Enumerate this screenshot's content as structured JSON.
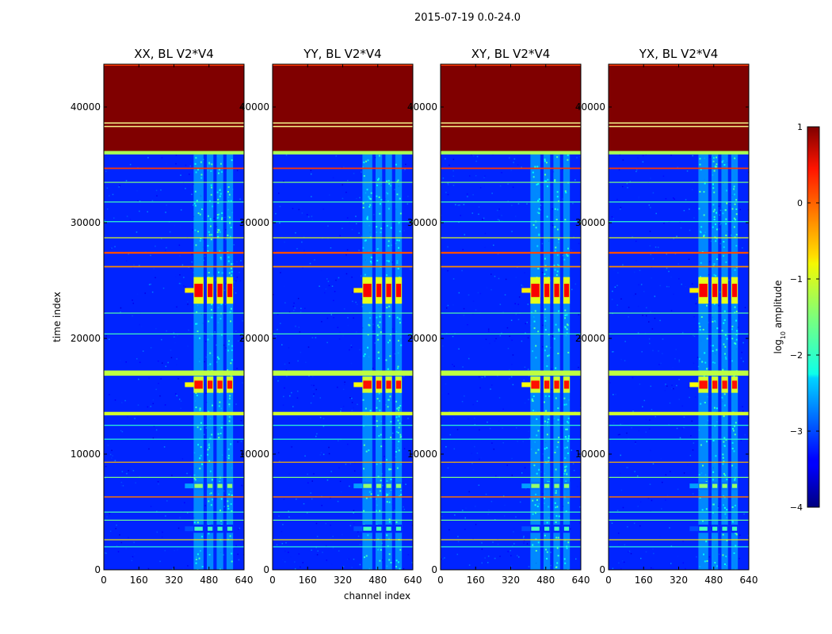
{
  "figure": {
    "suptitle": "2015-07-19 0.0-24.0",
    "ylabel": "time index",
    "xlabel": "channel index",
    "colorbar_label": "log10 amplitude",
    "colorbar_label_main": "log",
    "colorbar_label_sub": "10",
    "colorbar_label_tail": " amplitude"
  },
  "chart_data": {
    "type": "heatmap",
    "colormap": "jet",
    "panels": [
      {
        "title": "XX, BL V2*V4",
        "show_ylabel": true
      },
      {
        "title": "YY, BL V2*V4",
        "show_ylabel": false
      },
      {
        "title": "XY, BL V2*V4",
        "show_ylabel": false
      },
      {
        "title": "YX, BL V2*V4",
        "show_ylabel": false
      }
    ],
    "x": {
      "range": [
        0,
        640
      ],
      "ticks": [
        0,
        160,
        320,
        480,
        640
      ],
      "tick_labels": [
        "0",
        "160",
        "320",
        "480",
        "640"
      ]
    },
    "y": {
      "range": [
        0,
        43700
      ],
      "ticks": [
        0,
        10000,
        20000,
        30000,
        40000
      ],
      "tick_labels": [
        "0",
        "10000",
        "20000",
        "30000",
        "40000"
      ]
    },
    "colorbar": {
      "range": [
        -4,
        1
      ],
      "ticks": [
        1,
        0,
        -1,
        -2,
        -3,
        -4
      ],
      "tick_labels": [
        "1",
        "0",
        "−1",
        "−2",
        "−3",
        "−4"
      ]
    },
    "features": {
      "background_level": -3.2,
      "saturated_band": {
        "t_range": [
          36200,
          43700
        ],
        "level": 1.0
      },
      "flag_band_lines": [
        38300,
        38600
      ],
      "green_band": {
        "t_range": [
          35900,
          36400
        ],
        "level": -1.3
      },
      "rfi_channel_range": [
        410,
        590
      ],
      "rfi_line_edges": [
        410,
        455,
        470,
        500,
        515,
        545,
        560,
        590
      ],
      "hot_bursts": [
        {
          "t_range": [
            23000,
            25300
          ],
          "level": 0.4
        },
        {
          "t_range": [
            15300,
            16700
          ],
          "level": 0.3
        },
        {
          "t_range": [
            6900,
            7600
          ],
          "level": -1.4
        },
        {
          "t_range": [
            3200,
            3900
          ],
          "level": -1.8
        }
      ],
      "horizontal_lines": [
        {
          "t": 34700,
          "level": 0.1,
          "thick": 120
        },
        {
          "t": 33500,
          "level": -1.5,
          "thick": 60
        },
        {
          "t": 31800,
          "level": -1.8,
          "thick": 60
        },
        {
          "t": 30100,
          "level": -1.9,
          "thick": 60
        },
        {
          "t": 28700,
          "level": -1.0,
          "thick": 80
        },
        {
          "t": 27400,
          "level": 0.0,
          "thick": 160
        },
        {
          "t": 26200,
          "level": -0.3,
          "thick": 120
        },
        {
          "t": 22200,
          "level": -1.7,
          "thick": 60
        },
        {
          "t": 20400,
          "level": -1.8,
          "thick": 60
        },
        {
          "t": 17000,
          "level": -1.2,
          "thick": 450
        },
        {
          "t": 13500,
          "level": -1.1,
          "thick": 300
        },
        {
          "t": 12500,
          "level": -1.9,
          "thick": 60
        },
        {
          "t": 11300,
          "level": -1.9,
          "thick": 60
        },
        {
          "t": 9300,
          "level": -0.5,
          "thick": 80
        },
        {
          "t": 8000,
          "level": -1.5,
          "thick": 60
        },
        {
          "t": 6300,
          "level": -0.2,
          "thick": 100
        },
        {
          "t": 5000,
          "level": -1.8,
          "thick": 60
        },
        {
          "t": 4300,
          "level": -1.6,
          "thick": 60
        },
        {
          "t": 2600,
          "level": -0.8,
          "thick": 80
        },
        {
          "t": 2000,
          "level": -1.9,
          "thick": 60
        }
      ]
    }
  }
}
